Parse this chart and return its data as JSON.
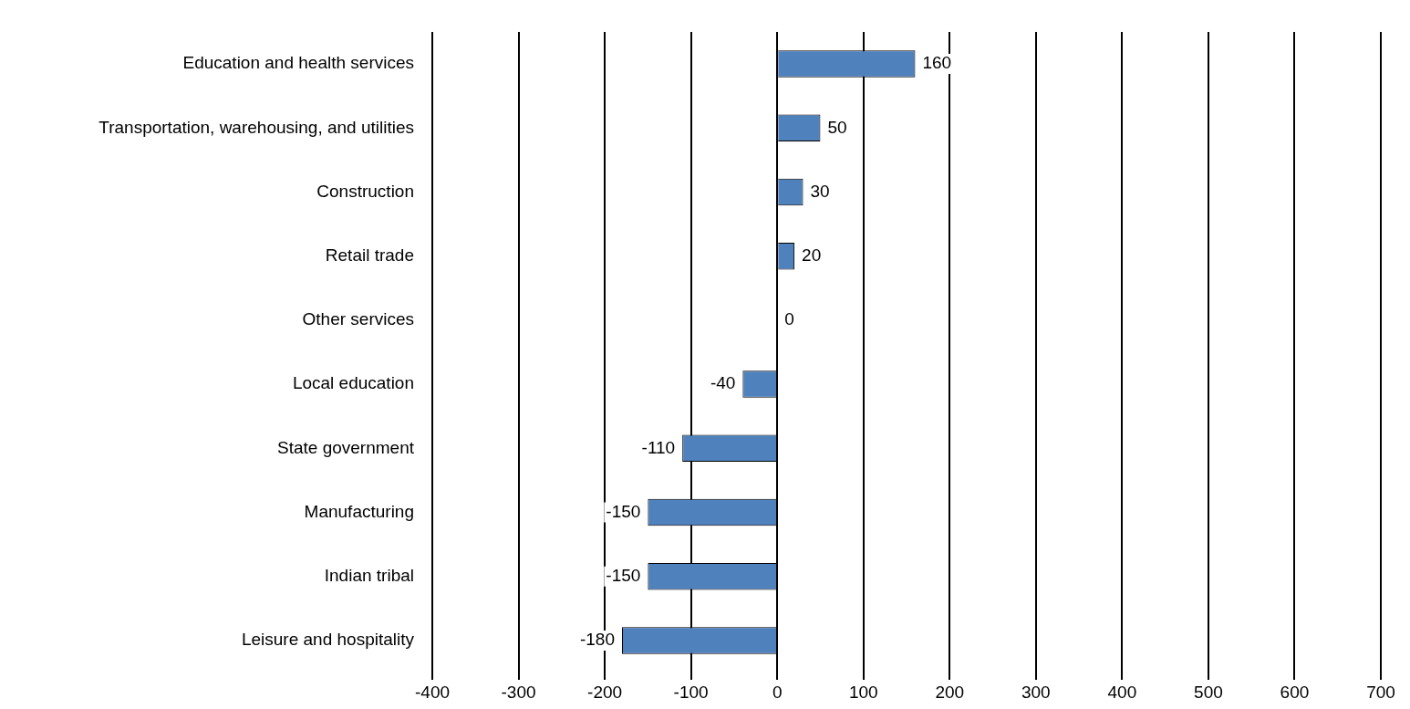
{
  "chart_data": {
    "type": "bar",
    "orientation": "horizontal",
    "categories": [
      "Education and health services",
      "Transportation, warehousing, and utilities",
      "Construction",
      "Retail trade",
      "Other services",
      "Local education",
      "State government",
      "Manufacturing",
      "Indian tribal",
      "Leisure and hospitality"
    ],
    "values": [
      160,
      50,
      30,
      20,
      0,
      -40,
      -110,
      -150,
      -150,
      -180
    ],
    "color": "#4f81bd",
    "xlim": [
      -400,
      700
    ],
    "xticks": [
      -400,
      -300,
      -200,
      -100,
      0,
      100,
      200,
      300,
      400,
      500,
      600,
      700
    ],
    "grid": "x",
    "data_labels": true,
    "legend": false
  }
}
